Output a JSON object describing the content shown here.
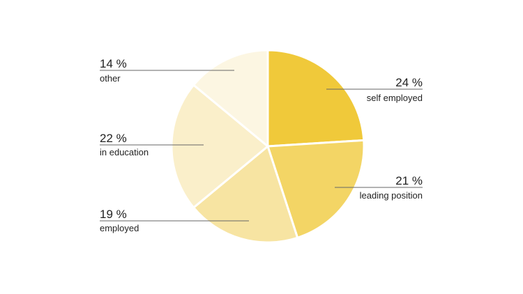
{
  "chart_data": {
    "type": "pie",
    "title": "",
    "slices": [
      {
        "label": "self employed",
        "value": 24,
        "value_text": "24 %",
        "color": "#f0c93a"
      },
      {
        "label": "leading position",
        "value": 21,
        "value_text": "21 %",
        "color": "#f3d565"
      },
      {
        "label": "employed",
        "value": 19,
        "value_text": "19 %",
        "color": "#f7e4a2"
      },
      {
        "label": "in education",
        "value": 22,
        "value_text": "22 %",
        "color": "#faefca"
      },
      {
        "label": "other",
        "value": 14,
        "value_text": "14 %",
        "color": "#fcf6e2"
      }
    ],
    "start_angle": "12 o'clock",
    "direction": "clockwise",
    "labels_side": {
      "self employed": "right",
      "leading position": "right",
      "employed": "left",
      "in education": "left",
      "other": "left"
    }
  }
}
